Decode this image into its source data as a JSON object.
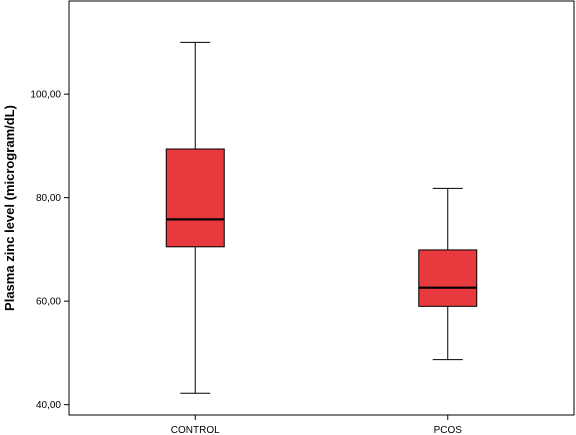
{
  "chart_data": {
    "type": "boxplot",
    "title": "",
    "xlabel": "",
    "ylabel": "Plasma zinc level (microgram/dL)",
    "ylim": [
      38,
      118
    ],
    "yticks": [
      40,
      60,
      80,
      100
    ],
    "ytick_labels": [
      "40,00",
      "60,00",
      "80,00",
      "100,00"
    ],
    "categories": [
      "CONTROL",
      "PCOS"
    ],
    "boxes": [
      {
        "category": "CONTROL",
        "min": 42.2,
        "q1": 70.5,
        "median": 75.8,
        "q3": 89.4,
        "max": 110.0
      },
      {
        "category": "PCOS",
        "min": 48.7,
        "q1": 59.0,
        "median": 62.6,
        "q3": 69.9,
        "max": 81.8
      }
    ],
    "grid": false,
    "legend": "none",
    "box_color": "#e8393f",
    "line_color": "#000000"
  }
}
